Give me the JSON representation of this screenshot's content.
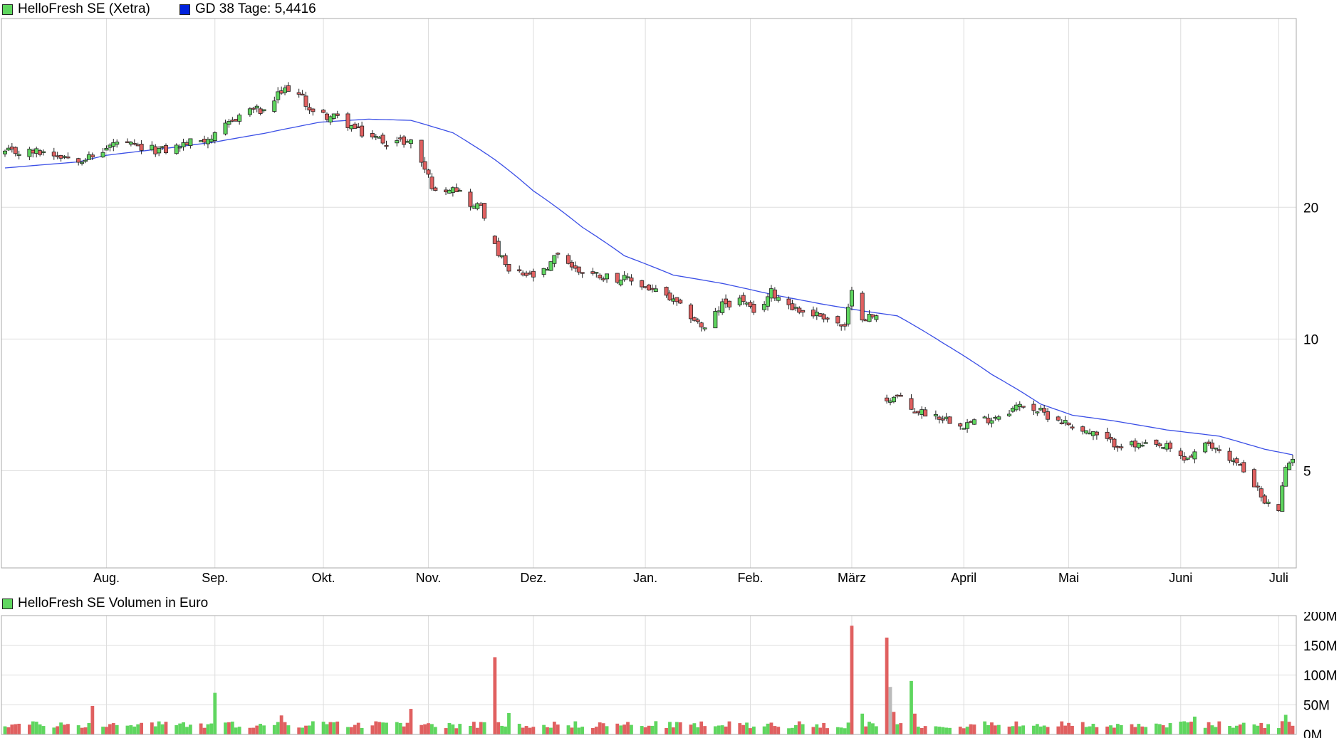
{
  "legend": {
    "price_label": "HelloFresh SE (Xetra)",
    "ma_label": "GD 38 Tage: 5,4416",
    "volume_label": "HelloFresh SE Volumen in Euro"
  },
  "colors": {
    "up": "#5fd65f",
    "down": "#e06060",
    "neutral": "#bbbbbb",
    "ma_line": "#3b4fe6",
    "ma_legend": "#0022dd",
    "grid": "#dddddd",
    "frame": "#aaaaaa"
  },
  "chart_data": [
    {
      "type": "candlestick",
      "title": "HelloFresh SE (Xetra)",
      "yscale": "log",
      "ylim": [
        3.0,
        54.0
      ],
      "y_ticks": [
        "20",
        "10",
        "5"
      ],
      "x_ticks": [
        "Aug.",
        "Sep.",
        "Okt.",
        "Nov.",
        "Dez.",
        "Jan.",
        "Feb.",
        "März",
        "April",
        "Mai",
        "Juni",
        "Juli"
      ],
      "x_range": [
        "2023-07-03",
        "2024-07-05"
      ],
      "grid": true,
      "series": [
        {
          "name": "HelloFresh SE (Xetra)",
          "close_points": [
            [
              "2023-07-03",
              26.7
            ],
            [
              "2023-07-14",
              26.8
            ],
            [
              "2023-07-24",
              25.9
            ],
            [
              "2023-07-28",
              26.0
            ],
            [
              "2023-08-04",
              28.2
            ],
            [
              "2023-08-11",
              27.2
            ],
            [
              "2023-08-18",
              27.0
            ],
            [
              "2023-08-25",
              28.2
            ],
            [
              "2023-09-01",
              29.0
            ],
            [
              "2023-09-08",
              32.5
            ],
            [
              "2023-09-12",
              33.7
            ],
            [
              "2023-09-15",
              32.8
            ],
            [
              "2023-09-19",
              36.0
            ],
            [
              "2023-09-22",
              37.5
            ],
            [
              "2023-09-26",
              35.5
            ],
            [
              "2023-09-29",
              32.8
            ],
            [
              "2023-10-06",
              32.0
            ],
            [
              "2023-10-13",
              29.5
            ],
            [
              "2023-10-20",
              28.3
            ],
            [
              "2023-10-27",
              28.3
            ],
            [
              "2023-10-31",
              24.5
            ],
            [
              "2023-11-03",
              21.5
            ],
            [
              "2023-11-08",
              22.5
            ],
            [
              "2023-11-14",
              20.0
            ],
            [
              "2023-11-16",
              20.3
            ],
            [
              "2023-11-20",
              16.2
            ],
            [
              "2023-11-24",
              14.2
            ],
            [
              "2023-12-01",
              13.9
            ],
            [
              "2023-12-05",
              14.3
            ],
            [
              "2023-12-08",
              15.8
            ],
            [
              "2023-12-13",
              14.4
            ],
            [
              "2023-12-20",
              14.0
            ],
            [
              "2023-12-29",
              13.6
            ],
            [
              "2024-01-08",
              12.5
            ],
            [
              "2024-01-15",
              11.3
            ],
            [
              "2024-01-19",
              10.5
            ],
            [
              "2024-01-24",
              12.0
            ],
            [
              "2024-01-30",
              12.3
            ],
            [
              "2024-02-02",
              11.3
            ],
            [
              "2024-02-07",
              12.8
            ],
            [
              "2024-02-15",
              11.6
            ],
            [
              "2024-02-22",
              11.3
            ],
            [
              "2024-02-28",
              10.6
            ],
            [
              "2024-03-01",
              12.7
            ],
            [
              "2024-03-04",
              11.3
            ],
            [
              "2024-03-08",
              11.2
            ],
            [
              "2024-03-11",
              7.3
            ],
            [
              "2024-03-14",
              7.4
            ],
            [
              "2024-03-18",
              6.9
            ],
            [
              "2024-03-25",
              6.7
            ],
            [
              "2024-04-02",
              6.4
            ],
            [
              "2024-04-10",
              6.6
            ],
            [
              "2024-04-19",
              7.1
            ],
            [
              "2024-04-26",
              6.7
            ],
            [
              "2024-05-06",
              6.2
            ],
            [
              "2024-05-14",
              5.8
            ],
            [
              "2024-05-21",
              5.7
            ],
            [
              "2024-05-30",
              5.65
            ],
            [
              "2024-06-04",
              5.3
            ],
            [
              "2024-06-10",
              5.7
            ],
            [
              "2024-06-14",
              5.6
            ],
            [
              "2024-06-20",
              5.1
            ],
            [
              "2024-06-24",
              4.7
            ],
            [
              "2024-06-27",
              4.2
            ],
            [
              "2024-07-01",
              4.1
            ],
            [
              "2024-07-03",
              5.0
            ],
            [
              "2024-07-05",
              5.4
            ]
          ]
        },
        {
          "name": "GD 38 Tage",
          "last_value": 5.4416,
          "points": [
            [
              "2023-07-03",
              24.6
            ],
            [
              "2023-07-24",
              25.4
            ],
            [
              "2023-08-01",
              26.3
            ],
            [
              "2023-08-20",
              27.4
            ],
            [
              "2023-09-01",
              28.2
            ],
            [
              "2023-09-15",
              29.5
            ],
            [
              "2023-10-01",
              31.3
            ],
            [
              "2023-10-15",
              31.8
            ],
            [
              "2023-10-27",
              31.6
            ],
            [
              "2023-11-08",
              29.6
            ],
            [
              "2023-11-20",
              25.7
            ],
            [
              "2023-12-01",
              21.8
            ],
            [
              "2023-12-15",
              18.0
            ],
            [
              "2023-12-27",
              15.5
            ],
            [
              "2024-01-10",
              14.0
            ],
            [
              "2024-01-24",
              13.4
            ],
            [
              "2024-02-08",
              12.6
            ],
            [
              "2024-02-22",
              12.0
            ],
            [
              "2024-03-04",
              11.6
            ],
            [
              "2024-03-14",
              11.3
            ],
            [
              "2024-03-27",
              9.8
            ],
            [
              "2024-04-10",
              8.3
            ],
            [
              "2024-04-24",
              7.1
            ],
            [
              "2024-05-03",
              6.7
            ],
            [
              "2024-05-15",
              6.5
            ],
            [
              "2024-05-30",
              6.2
            ],
            [
              "2024-06-14",
              6.0
            ],
            [
              "2024-06-27",
              5.6
            ],
            [
              "2024-07-05",
              5.44
            ]
          ]
        }
      ]
    },
    {
      "type": "bar",
      "title": "HelloFresh SE Volumen in Euro",
      "unit": "M EUR",
      "ylim": [
        0,
        200
      ],
      "y_ticks": [
        "200M",
        "150M",
        "100M",
        "50M",
        "0M"
      ],
      "baseline": 16,
      "spikes": [
        [
          "2023-07-28",
          48
        ],
        [
          "2023-09-01",
          70
        ],
        [
          "2023-09-20",
          32
        ],
        [
          "2023-10-27",
          43
        ],
        [
          "2023-11-20",
          130
        ],
        [
          "2023-11-24",
          36
        ],
        [
          "2024-03-01",
          183
        ],
        [
          "2024-03-04",
          35
        ],
        [
          "2024-03-11",
          163
        ],
        [
          "2024-03-12",
          80
        ],
        [
          "2024-03-13",
          38
        ],
        [
          "2024-03-18",
          90
        ],
        [
          "2024-03-19",
          35
        ],
        [
          "2024-06-07",
          30
        ],
        [
          "2024-07-03",
          33
        ]
      ]
    }
  ]
}
